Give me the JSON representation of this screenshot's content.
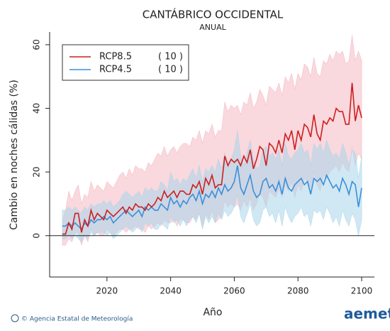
{
  "chart_data": {
    "type": "line",
    "title": "CANTÁBRICO OCCIDENTAL",
    "subtitle": "ANUAL",
    "x_label": "Año",
    "y_label": "Cambio en noches cálidas (%)",
    "footer": "© Agencia Estatal de Meteorología",
    "logo": "aemet",
    "x": [
      2006,
      2007,
      2008,
      2009,
      2010,
      2011,
      2012,
      2013,
      2014,
      2015,
      2016,
      2017,
      2018,
      2019,
      2020,
      2021,
      2022,
      2023,
      2024,
      2025,
      2026,
      2027,
      2028,
      2029,
      2030,
      2031,
      2032,
      2033,
      2034,
      2035,
      2036,
      2037,
      2038,
      2039,
      2040,
      2041,
      2042,
      2043,
      2044,
      2045,
      2046,
      2047,
      2048,
      2049,
      2050,
      2051,
      2052,
      2053,
      2054,
      2055,
      2056,
      2057,
      2058,
      2059,
      2060,
      2061,
      2062,
      2063,
      2064,
      2065,
      2066,
      2067,
      2068,
      2069,
      2070,
      2071,
      2072,
      2073,
      2074,
      2075,
      2076,
      2077,
      2078,
      2079,
      2080,
      2081,
      2082,
      2083,
      2084,
      2085,
      2086,
      2087,
      2088,
      2089,
      2090,
      2091,
      2092,
      2093,
      2094,
      2095,
      2096,
      2097,
      2098,
      2099,
      2100
    ],
    "series": [
      {
        "name": "RCP8.5",
        "count": "( 10 )",
        "color": "#cc1f1f",
        "band_color": "#f4b8c2",
        "values": [
          0.5,
          0.5,
          4,
          2,
          7,
          7,
          1,
          5,
          3,
          8,
          5,
          7,
          6,
          5,
          8,
          7,
          6,
          7,
          8,
          9,
          7,
          9,
          8,
          10,
          9,
          9,
          8,
          10,
          9,
          10,
          12,
          11,
          14,
          12,
          13,
          14,
          12,
          14,
          14,
          13,
          13,
          16,
          15,
          17,
          13,
          18,
          16,
          19,
          15,
          16,
          16,
          25,
          22,
          24,
          23,
          24,
          22,
          25,
          23,
          27,
          21,
          24,
          28,
          27,
          22,
          29,
          28,
          26,
          30,
          26,
          32,
          30,
          33,
          27,
          33,
          30,
          35,
          34,
          31,
          38,
          32,
          30,
          36,
          35,
          37,
          36,
          40,
          39,
          39,
          35,
          35,
          48,
          36,
          41,
          37
        ],
        "upper": [
          5,
          8,
          14,
          11,
          14,
          16,
          10,
          13,
          12,
          17,
          14,
          16,
          15,
          14,
          17,
          16,
          15,
          17,
          19,
          20,
          18,
          21,
          19,
          22,
          21,
          21,
          20,
          23,
          22,
          24,
          26,
          25,
          28,
          25,
          27,
          28,
          26,
          28,
          29,
          29,
          28,
          31,
          30,
          33,
          29,
          33,
          32,
          35,
          31,
          33,
          33,
          42,
          39,
          41,
          40,
          41,
          38,
          42,
          41,
          45,
          40,
          42,
          46,
          44,
          41,
          47,
          46,
          45,
          48,
          44,
          50,
          48,
          51,
          46,
          51,
          49,
          54,
          53,
          50,
          56,
          51,
          50,
          55,
          54,
          57,
          55,
          58,
          57,
          58,
          54,
          55,
          63,
          55,
          58,
          55
        ],
        "lower": [
          -3,
          -3,
          -1,
          -2,
          1,
          1,
          -3,
          0,
          -2,
          2,
          0,
          1,
          0,
          0,
          2,
          1,
          0,
          1,
          2,
          2,
          1,
          2,
          2,
          3,
          2,
          2,
          1,
          3,
          2,
          3,
          4,
          3,
          5,
          4,
          4,
          5,
          3,
          5,
          5,
          4,
          4,
          6,
          5,
          7,
          3,
          7,
          5,
          8,
          4,
          5,
          6,
          11,
          9,
          10,
          9,
          10,
          8,
          11,
          9,
          12,
          8,
          10,
          13,
          12,
          9,
          14,
          13,
          12,
          15,
          12,
          16,
          14,
          17,
          12,
          16,
          14,
          18,
          17,
          15,
          20,
          16,
          14,
          19,
          18,
          20,
          21,
          22,
          20,
          23,
          21,
          20,
          28,
          22,
          26,
          24
        ]
      },
      {
        "name": "RCP4.5",
        "count": "( 10 )",
        "color": "#3a8fd9",
        "band_color": "#a9d6ea",
        "values": [
          3,
          3,
          4,
          3,
          4,
          3,
          2,
          4,
          3,
          5,
          4,
          5,
          5,
          6,
          5,
          6,
          4,
          5,
          6,
          7,
          8,
          7,
          6,
          7,
          8,
          6,
          9,
          8,
          9,
          8,
          8,
          10,
          9,
          8,
          12,
          10,
          11,
          9,
          11,
          10,
          12,
          13,
          11,
          14,
          10,
          13,
          12,
          14,
          12,
          15,
          13,
          16,
          14,
          15,
          17,
          22,
          15,
          13,
          16,
          19,
          14,
          12,
          13,
          17,
          18,
          15,
          16,
          14,
          17,
          13,
          18,
          15,
          14,
          16,
          17,
          18,
          16,
          17,
          13,
          18,
          17,
          18,
          16,
          19,
          17,
          15,
          16,
          14,
          18,
          16,
          13,
          17,
          16,
          9,
          15
        ],
        "upper": [
          8,
          8,
          9,
          8,
          9,
          8,
          7,
          9,
          8,
          10,
          9,
          10,
          10,
          11,
          10,
          11,
          9,
          10,
          11,
          13,
          14,
          13,
          12,
          13,
          14,
          12,
          15,
          14,
          15,
          14,
          14,
          17,
          16,
          14,
          20,
          17,
          18,
          16,
          18,
          17,
          19,
          21,
          18,
          22,
          17,
          21,
          20,
          22,
          20,
          24,
          21,
          26,
          23,
          24,
          27,
          33,
          25,
          22,
          26,
          30,
          24,
          21,
          22,
          27,
          28,
          25,
          26,
          24,
          27,
          22,
          29,
          25,
          24,
          26,
          27,
          29,
          26,
          27,
          22,
          29,
          27,
          29,
          26,
          30,
          27,
          25,
          26,
          24,
          29,
          26,
          22,
          27,
          26,
          18,
          25
        ],
        "lower": [
          -1,
          -1,
          0,
          -1,
          0,
          -1,
          -2,
          0,
          -1,
          1,
          0,
          1,
          1,
          1,
          0,
          1,
          -1,
          0,
          1,
          2,
          3,
          2,
          1,
          2,
          3,
          1,
          4,
          3,
          4,
          2,
          2,
          4,
          3,
          2,
          6,
          4,
          5,
          3,
          5,
          3,
          5,
          6,
          4,
          7,
          2,
          6,
          4,
          6,
          4,
          7,
          5,
          8,
          6,
          7,
          9,
          13,
          6,
          4,
          7,
          10,
          5,
          3,
          4,
          8,
          9,
          6,
          7,
          4,
          8,
          3,
          9,
          6,
          4,
          6,
          7,
          9,
          6,
          7,
          3,
          8,
          7,
          8,
          5,
          9,
          7,
          4,
          6,
          3,
          8,
          5,
          3,
          7,
          5,
          0,
          5
        ]
      }
    ],
    "hline": 0,
    "xlim": [
      2002,
      2104
    ],
    "ylim": [
      -13,
      64
    ],
    "xticks": [
      2020,
      2040,
      2060,
      2080,
      2100
    ],
    "yticks": [
      0,
      20,
      40,
      60
    ]
  }
}
